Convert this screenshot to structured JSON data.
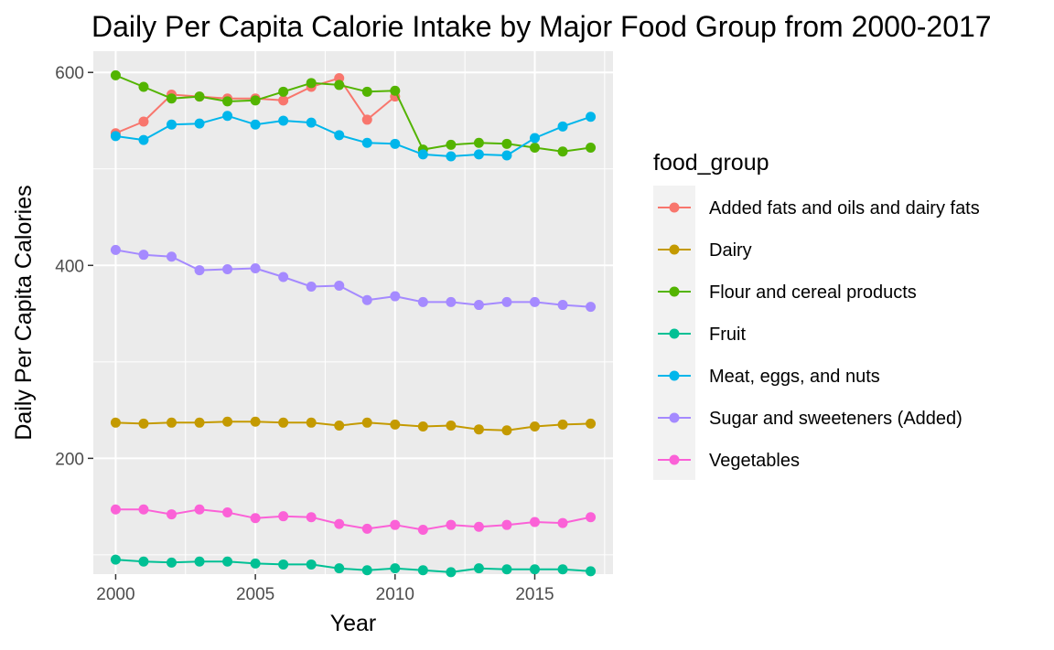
{
  "chart_data": {
    "type": "line",
    "title": "Daily Per Capita Calorie Intake by Major Food Group from 2000-2017",
    "xlabel": "Year",
    "ylabel": "Daily Per Capita Calories",
    "xlim": [
      1999.2,
      2017.8
    ],
    "ylim": [
      80,
      622
    ],
    "x_ticks": [
      2000,
      2005,
      2010,
      2015
    ],
    "y_ticks": [
      200,
      400,
      600
    ],
    "grid": true,
    "legend": {
      "title": "food_group",
      "position": "right"
    },
    "x": [
      2000,
      2001,
      2002,
      2003,
      2004,
      2005,
      2006,
      2007,
      2008,
      2009,
      2010,
      2011,
      2012,
      2013,
      2014,
      2015,
      2016,
      2017
    ],
    "series": [
      {
        "name": "Added fats and oils and dairy fats",
        "color": "#F8766D",
        "x": [
          2000,
          2001,
          2002,
          2003,
          2004,
          2005,
          2006,
          2007,
          2008,
          2009,
          2010
        ],
        "values": [
          537,
          549,
          577,
          575,
          573,
          573,
          571,
          585,
          594,
          551,
          575
        ]
      },
      {
        "name": "Dairy",
        "color": "#C49A00",
        "values": [
          237,
          236,
          237,
          237,
          238,
          238,
          237,
          237,
          234,
          237,
          235,
          233,
          234,
          230,
          229,
          233,
          235,
          236
        ]
      },
      {
        "name": "Flour and cereal products",
        "color": "#53B400",
        "values": [
          597,
          585,
          573,
          575,
          570,
          571,
          580,
          589,
          587,
          580,
          581,
          520,
          525,
          527,
          526,
          522,
          518,
          522
        ]
      },
      {
        "name": "Fruit",
        "color": "#00C094",
        "values": [
          95,
          93,
          92,
          93,
          93,
          91,
          90,
          90,
          86,
          84,
          86,
          84,
          82,
          86,
          85,
          85,
          85,
          83
        ]
      },
      {
        "name": "Meat, eggs, and nuts",
        "color": "#00B6EB",
        "values": [
          534,
          530,
          546,
          547,
          555,
          546,
          550,
          548,
          535,
          527,
          526,
          515,
          513,
          515,
          514,
          532,
          544,
          554
        ]
      },
      {
        "name": "Sugar and sweeteners (Added)",
        "color": "#A58AFF",
        "values": [
          416,
          411,
          409,
          395,
          396,
          397,
          388,
          378,
          379,
          364,
          368,
          362,
          362,
          359,
          362,
          362,
          359,
          357
        ]
      },
      {
        "name": "Vegetables",
        "color": "#FB61D7",
        "values": [
          147,
          147,
          142,
          147,
          144,
          138,
          140,
          139,
          132,
          127,
          131,
          126,
          131,
          129,
          131,
          134,
          133,
          139
        ]
      }
    ]
  }
}
